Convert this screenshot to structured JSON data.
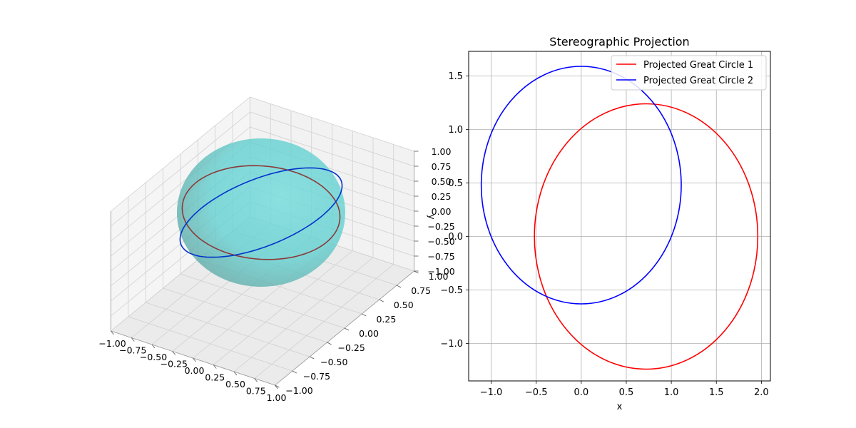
{
  "colors": {
    "sphere_fill": "#5fcfcf",
    "circle1_3d": "#8b3a3a",
    "circle2_3d": "#0033cc",
    "series1": "#ff0000",
    "series2": "#0000ff",
    "grid": "#b0b0b0",
    "pane": "#ececec"
  },
  "chart_data": [
    {
      "type": "surface3d",
      "title": "",
      "xlabel": "",
      "ylabel": "y",
      "zlabel": "",
      "xlim": [
        -1,
        1
      ],
      "ylim": [
        -1,
        1
      ],
      "zlim": [
        -1,
        1
      ],
      "x_ticks": [
        "−1.00",
        "−0.75",
        "−0.50",
        "−0.25",
        "0.00",
        "0.25",
        "0.50",
        "0.75",
        "1.00"
      ],
      "y_ticks": [
        "−1.00",
        "−0.75",
        "−0.50",
        "−0.25",
        "0.00",
        "0.25",
        "0.50",
        "0.75",
        "1.00"
      ],
      "z_ticks": [
        "−1.00",
        "−0.75",
        "−0.50",
        "−0.25",
        "0.00",
        "0.25",
        "0.50",
        "0.75",
        "1.00"
      ],
      "grid": true,
      "surface": "unit sphere",
      "curves": [
        {
          "name": "great-circle-1",
          "color": "#8b3a3a",
          "normal": [
            -0.35,
            0.94,
            0.0
          ]
        },
        {
          "name": "great-circle-2",
          "color": "#0033cc",
          "normal": [
            -0.34,
            0.0,
            0.94
          ]
        }
      ]
    },
    {
      "type": "line",
      "title": "Stereographic Projection",
      "xlabel": "x",
      "ylabel": "",
      "xlim": [
        -1.25,
        2.1
      ],
      "ylim": [
        -1.35,
        1.73
      ],
      "x_ticks": [
        -1.0,
        -0.5,
        0.0,
        0.5,
        1.0,
        1.5,
        2.0
      ],
      "x_tick_labels": [
        "−1.0",
        "−0.5",
        "0.0",
        "0.5",
        "1.0",
        "1.5",
        "2.0"
      ],
      "y_ticks": [
        -1.0,
        -0.5,
        0.0,
        0.5,
        1.0,
        1.5
      ],
      "y_tick_labels": [
        "−1.0",
        "−0.5",
        "0.0",
        "0.5",
        "1.0",
        "1.5"
      ],
      "grid": true,
      "legend_position": "top-right",
      "series": [
        {
          "name": "Projected Great Circle 1",
          "color": "#ff0000",
          "shape": "ellipse",
          "center": [
            0.72,
            0.0
          ],
          "radius_x": 1.24,
          "radius_y": 1.24
        },
        {
          "name": "Projected Great Circle 2",
          "color": "#0000ff",
          "shape": "ellipse",
          "center": [
            0.0,
            0.48
          ],
          "radius_x": 1.11,
          "radius_y": 1.11
        }
      ]
    }
  ]
}
